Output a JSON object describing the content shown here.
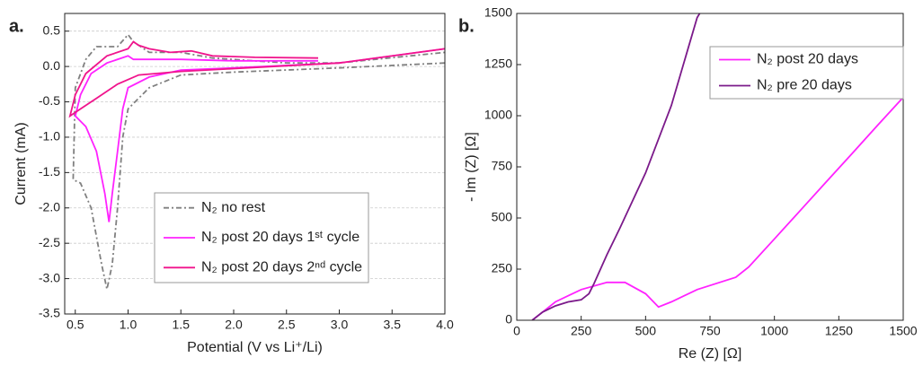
{
  "chart_data": [
    {
      "type": "line",
      "panel_label": "a.",
      "x_label": "Potential (V vs Li⁺/Li)",
      "y_label": "Current (mA)",
      "xlim": [
        0.4,
        4.0
      ],
      "ylim": [
        -3.5,
        0.75
      ],
      "xticks": [
        0.5,
        {
          "value": 1,
          "label": "1.0"
        },
        1.5,
        {
          "value": 2,
          "label": "2.0"
        },
        2.5,
        {
          "value": 3,
          "label": "3.0"
        },
        3.5,
        {
          "value": 4,
          "label": "4.0"
        }
      ],
      "yticks": [
        0.5,
        {
          "value": 0,
          "label": "0.0"
        },
        -0.5,
        {
          "value": -1,
          "label": "-1.0"
        },
        -1.5,
        {
          "value": -2,
          "label": "-2.0"
        },
        -2.5,
        {
          "value": -3,
          "label": "-3.0"
        },
        -3.5
      ],
      "grid": true,
      "legend": "lower right",
      "series": [
        {
          "name": "N₂ no rest",
          "color": "#808080",
          "style": "dashdot",
          "x": [
            4.0,
            3.0,
            2.0,
            1.5,
            1.2,
            1.0,
            0.95,
            0.9,
            0.85,
            0.8,
            0.75,
            0.65,
            0.55,
            0.48,
            0.5,
            0.6,
            0.7,
            0.9,
            1.0,
            1.05,
            1.2,
            1.5,
            1.8,
            2.5,
            3.0,
            4.0
          ],
          "values": [
            0.05,
            -0.02,
            -0.08,
            -0.12,
            -0.3,
            -0.6,
            -1.0,
            -2.0,
            -2.8,
            -3.15,
            -2.8,
            -2.0,
            -1.65,
            -1.6,
            -0.3,
            0.1,
            0.28,
            0.28,
            0.45,
            0.35,
            0.2,
            0.2,
            0.12,
            0.05,
            0.05,
            0.2
          ]
        },
        {
          "name": "N₂ post 20 days 1ˢᵗ cycle",
          "color": "#ff22ff",
          "style": "solid",
          "x": [
            4.0,
            3.0,
            2.0,
            1.5,
            1.2,
            1.0,
            0.95,
            0.9,
            0.85,
            0.82,
            0.78,
            0.7,
            0.6,
            0.5,
            0.55,
            0.65,
            0.8,
            1.0,
            1.05,
            1.2,
            1.5,
            2.0,
            2.8
          ],
          "values": [
            0.25,
            0.05,
            -0.02,
            -0.05,
            -0.15,
            -0.3,
            -0.6,
            -1.2,
            -1.8,
            -2.2,
            -1.8,
            -1.2,
            -0.85,
            -0.7,
            -0.4,
            -0.1,
            0.05,
            0.15,
            0.1,
            0.1,
            0.1,
            0.08,
            0.08
          ]
        },
        {
          "name": "N₂ post 20 days 2ⁿᵈ cycle",
          "color": "#f0148c",
          "style": "solid",
          "x": [
            4.0,
            3.0,
            2.0,
            1.5,
            1.1,
            0.9,
            0.7,
            0.55,
            0.45,
            0.5,
            0.6,
            0.8,
            1.0,
            1.05,
            1.1,
            1.2,
            1.4,
            1.6,
            1.8,
            2.2,
            2.8
          ],
          "values": [
            0.25,
            0.05,
            -0.03,
            -0.07,
            -0.12,
            -0.25,
            -0.45,
            -0.6,
            -0.7,
            -0.4,
            -0.1,
            0.15,
            0.25,
            0.35,
            0.3,
            0.25,
            0.2,
            0.22,
            0.15,
            0.13,
            0.12
          ]
        }
      ]
    },
    {
      "type": "line",
      "panel_label": "b.",
      "x_label": "Re (Z) [Ω]",
      "y_label": "- Im (Z) [Ω]",
      "xlim": [
        0,
        1500
      ],
      "ylim": [
        0,
        1500
      ],
      "xticks": [
        0,
        250,
        500,
        750,
        1000,
        1250,
        1500
      ],
      "yticks": [
        0,
        250,
        500,
        750,
        1000,
        1250,
        1500
      ],
      "grid": false,
      "legend": "upper right",
      "series": [
        {
          "name": "N₂ post 20 days",
          "color": "#ff22ff",
          "style": "solid",
          "x": [
            60,
            100,
            150,
            250,
            350,
            420,
            500,
            550,
            600,
            700,
            850,
            900,
            1000,
            1100,
            1200,
            1300,
            1400,
            1500
          ],
          "values": [
            0,
            40,
            90,
            150,
            185,
            185,
            130,
            65,
            90,
            150,
            210,
            260,
            398,
            536,
            675,
            813,
            952,
            1090
          ]
        },
        {
          "name": "N₂ pre 20 days",
          "color": "#7b1a8a",
          "style": "solid",
          "x": [
            60,
            100,
            150,
            200,
            250,
            280,
            300,
            350,
            400,
            500,
            600,
            700,
            710
          ],
          "values": [
            0,
            40,
            70,
            90,
            100,
            130,
            180,
            320,
            450,
            720,
            1050,
            1480,
            1500
          ]
        }
      ]
    }
  ]
}
